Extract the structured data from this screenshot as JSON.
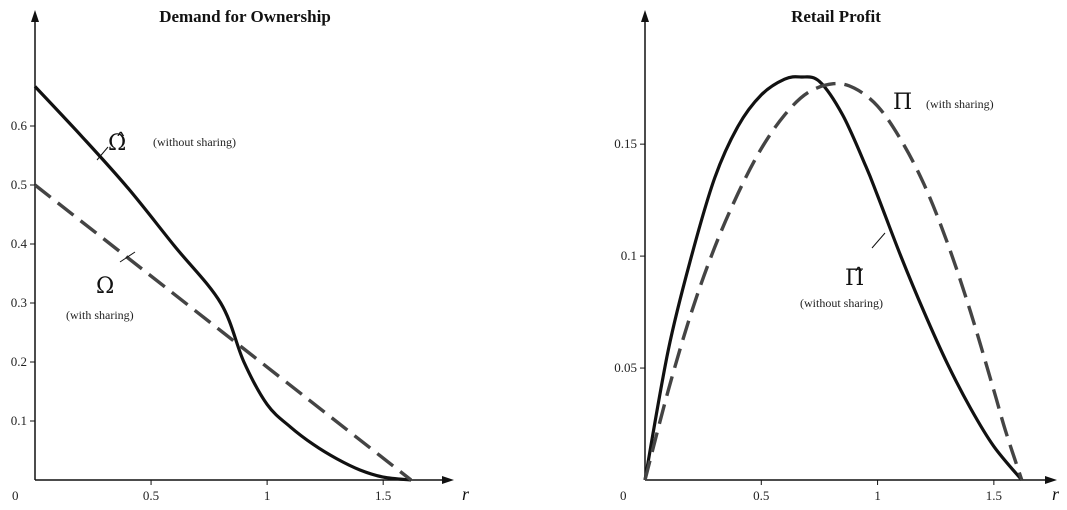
{
  "chart_data": [
    {
      "type": "line",
      "title": "Demand for Ownership",
      "xlabel": "r",
      "ylabel": "",
      "origin_label": "0",
      "xlim": [
        0,
        1.65
      ],
      "ylim": [
        0,
        0.7
      ],
      "x_ticks": [
        0.5,
        1,
        1.5
      ],
      "x_tick_labels": [
        "0.5",
        "1",
        "1.5"
      ],
      "y_ticks": [
        0.1,
        0.2,
        0.3,
        0.4,
        0.5,
        0.6
      ],
      "y_tick_labels": [
        "0.1",
        "0.2",
        "0.3",
        "0.4",
        "0.5",
        "0.6"
      ],
      "grid": false,
      "series": [
        {
          "style": "solid",
          "color": "#111111",
          "x": [
            0,
            0.2,
            0.4,
            0.6,
            0.8,
            0.9,
            1.0,
            1.1,
            1.2,
            1.3,
            1.4,
            1.5,
            1.62
          ],
          "y": [
            0.667,
            0.583,
            0.495,
            0.397,
            0.3,
            0.2,
            0.128,
            0.09,
            0.06,
            0.036,
            0.017,
            0.005,
            0
          ]
        },
        {
          "style": "dashed",
          "color": "#444444",
          "x": [
            0,
            1.62
          ],
          "y": [
            0.5,
            0
          ]
        }
      ],
      "annotations": [
        {
          "symbol": "Ω̂",
          "text": "(without sharing)",
          "x": 0.3,
          "y": 0.57
        },
        {
          "symbol": "Ω",
          "text": "(with sharing)",
          "x": 0.25,
          "y": 0.38
        }
      ]
    },
    {
      "type": "line",
      "title": "Retail Profit",
      "xlabel": "r",
      "ylabel": "",
      "origin_label": "0",
      "xlim": [
        0,
        1.75
      ],
      "ylim": [
        0,
        0.205
      ],
      "x_ticks": [
        0.5,
        1,
        1.5
      ],
      "x_tick_labels": [
        "0.5",
        "1",
        "1.5"
      ],
      "y_ticks": [
        0.05,
        0.1,
        0.15
      ],
      "y_tick_labels": [
        "0.05",
        "0.1",
        "0.15"
      ],
      "grid": false,
      "series": [
        {
          "style": "solid",
          "color": "#111111",
          "x": [
            0,
            0.1,
            0.2,
            0.3,
            0.4,
            0.5,
            0.6,
            0.67,
            0.75,
            0.85,
            0.95,
            1.0,
            1.1,
            1.2,
            1.3,
            1.4,
            1.5,
            1.62
          ],
          "y": [
            0,
            0.058,
            0.1,
            0.135,
            0.158,
            0.172,
            0.179,
            0.18,
            0.178,
            0.163,
            0.14,
            0.127,
            0.1,
            0.075,
            0.052,
            0.032,
            0.015,
            0
          ]
        },
        {
          "style": "dashed",
          "color": "#444444",
          "x": [
            0,
            0.1,
            0.2,
            0.3,
            0.4,
            0.5,
            0.6,
            0.7,
            0.81,
            0.9,
            1.0,
            1.1,
            1.2,
            1.3,
            1.4,
            1.5,
            1.55,
            1.62
          ],
          "y": [
            0,
            0.04,
            0.075,
            0.104,
            0.128,
            0.148,
            0.163,
            0.173,
            0.177,
            0.175,
            0.167,
            0.152,
            0.132,
            0.106,
            0.075,
            0.04,
            0.022,
            0
          ]
        }
      ],
      "annotations": [
        {
          "symbol": "Π",
          "text": "(with sharing)",
          "x": 1.1,
          "y": 0.178
        },
        {
          "symbol": "Π̂",
          "text": "(without sharing)",
          "x": 1.0,
          "y": 0.105
        }
      ]
    }
  ]
}
